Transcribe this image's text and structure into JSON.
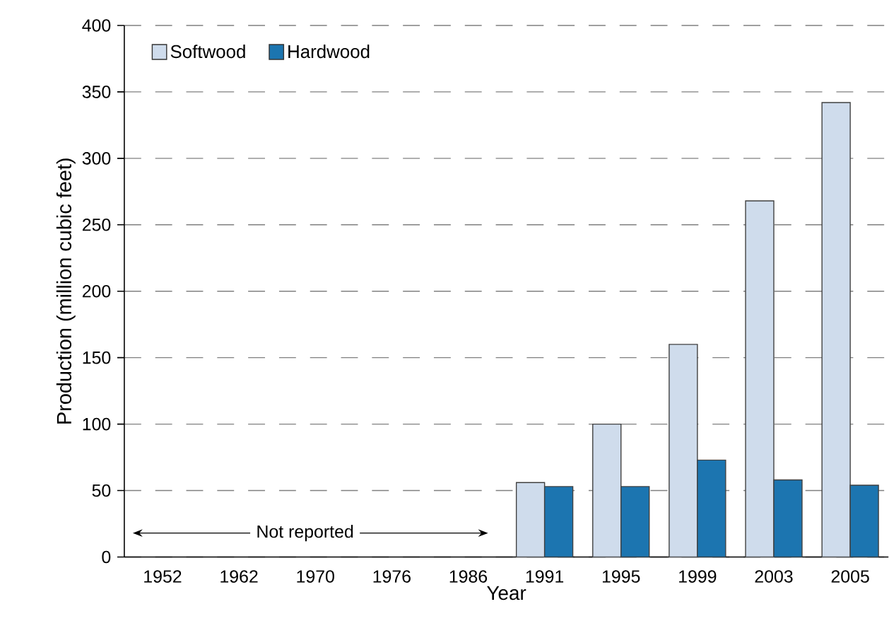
{
  "chart_data": {
    "type": "bar",
    "xlabel": "Year",
    "ylabel": "Production (million cubic feet)",
    "categories": [
      "1952",
      "1962",
      "1970",
      "1976",
      "1986",
      "1991",
      "1995",
      "1999",
      "2003",
      "2005"
    ],
    "series": [
      {
        "name": "Softwood",
        "color": "#cfdcec",
        "values": [
          null,
          null,
          null,
          null,
          null,
          56,
          100,
          160,
          268,
          342
        ]
      },
      {
        "name": "Hardwood",
        "color": "#1c75b0",
        "values": [
          null,
          null,
          null,
          null,
          null,
          53,
          53,
          73,
          58,
          54
        ]
      }
    ],
    "ylim": [
      0,
      400
    ],
    "yticks": [
      0,
      50,
      100,
      150,
      200,
      250,
      300,
      350,
      400
    ],
    "grid": "y",
    "legend": "top left",
    "annotations": [
      "Not reported"
    ]
  }
}
